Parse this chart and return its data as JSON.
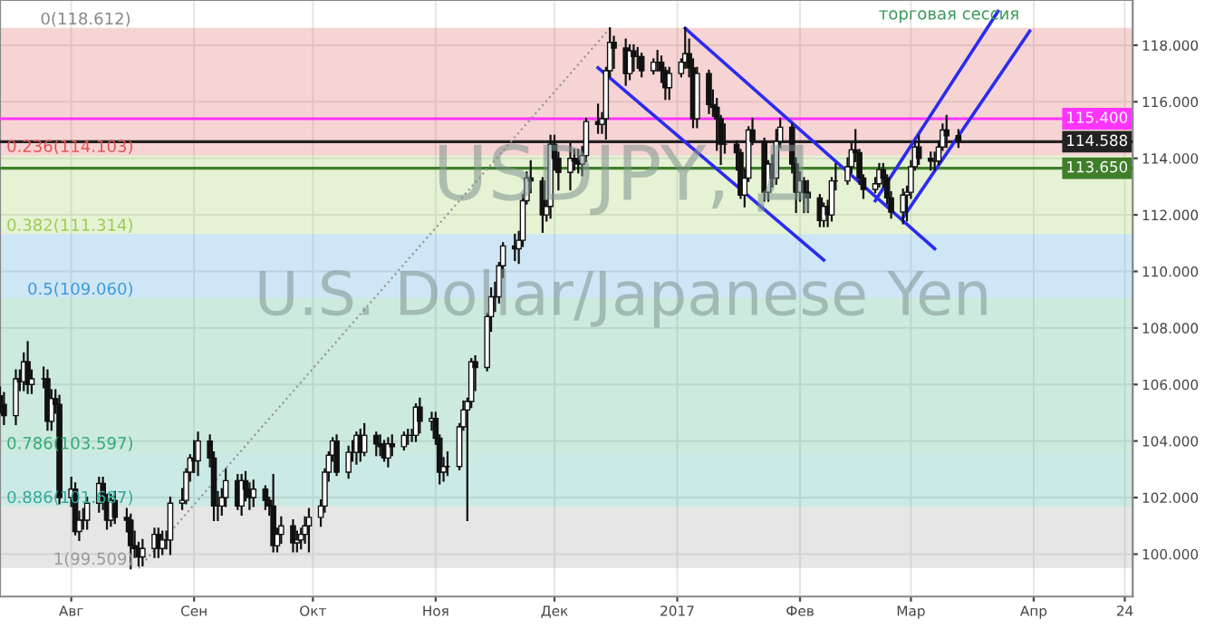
{
  "chart_data": {
    "type": "candlestick",
    "x": [
      "2016-07-14",
      "2016-07-15",
      "2016-07-18",
      "2016-07-19",
      "2016-07-20",
      "2016-07-21",
      "2016-07-22",
      "2016-07-25",
      "2016-07-26",
      "2016-07-27",
      "2016-07-28",
      "2016-07-29",
      "2016-08-01",
      "2016-08-02",
      "2016-08-03",
      "2016-08-04",
      "2016-08-05",
      "2016-08-08",
      "2016-08-09",
      "2016-08-10",
      "2016-08-11",
      "2016-08-12",
      "2016-08-15",
      "2016-08-16",
      "2016-08-17",
      "2016-08-18",
      "2016-08-19",
      "2016-08-22",
      "2016-08-23",
      "2016-08-24",
      "2016-08-25",
      "2016-08-26",
      "2016-08-29",
      "2016-08-30",
      "2016-08-31",
      "2016-09-01",
      "2016-09-02",
      "2016-09-05",
      "2016-09-06",
      "2016-09-07",
      "2016-09-08",
      "2016-09-09",
      "2016-09-12",
      "2016-09-13",
      "2016-09-14",
      "2016-09-15",
      "2016-09-16",
      "2016-09-19",
      "2016-09-20",
      "2016-09-21",
      "2016-09-22",
      "2016-09-23",
      "2016-09-26",
      "2016-09-27",
      "2016-09-28",
      "2016-09-29",
      "2016-09-30",
      "2016-10-03",
      "2016-10-04",
      "2016-10-05",
      "2016-10-06",
      "2016-10-07",
      "2016-10-10",
      "2016-10-11",
      "2016-10-12",
      "2016-10-13",
      "2016-10-14",
      "2016-10-17",
      "2016-10-18",
      "2016-10-19",
      "2016-10-20",
      "2016-10-21",
      "2016-10-24",
      "2016-10-25",
      "2016-10-26",
      "2016-10-27",
      "2016-10-28",
      "2016-10-31",
      "2016-11-01",
      "2016-11-02",
      "2016-11-03",
      "2016-11-04",
      "2016-11-07",
      "2016-11-08",
      "2016-11-09",
      "2016-11-10",
      "2016-11-11",
      "2016-11-14",
      "2016-11-15",
      "2016-11-16",
      "2016-11-17",
      "2016-11-18",
      "2016-11-21",
      "2016-11-22",
      "2016-11-23",
      "2016-11-24",
      "2016-11-25",
      "2016-11-28",
      "2016-11-29",
      "2016-11-30",
      "2016-12-01",
      "2016-12-02",
      "2016-12-05",
      "2016-12-06",
      "2016-12-07",
      "2016-12-08",
      "2016-12-09",
      "2016-12-12",
      "2016-12-13",
      "2016-12-14",
      "2016-12-15",
      "2016-12-16",
      "2016-12-19",
      "2016-12-20",
      "2016-12-21",
      "2016-12-22",
      "2016-12-23",
      "2016-12-26",
      "2016-12-27",
      "2016-12-28",
      "2016-12-29",
      "2016-12-30",
      "2017-01-02",
      "2017-01-03",
      "2017-01-04",
      "2017-01-05",
      "2017-01-06",
      "2017-01-09",
      "2017-01-10",
      "2017-01-11",
      "2017-01-12",
      "2017-01-13",
      "2017-01-16",
      "2017-01-17",
      "2017-01-18",
      "2017-01-19",
      "2017-01-20",
      "2017-01-23",
      "2017-01-24",
      "2017-01-25",
      "2017-01-26",
      "2017-01-27",
      "2017-01-30",
      "2017-01-31",
      "2017-02-01",
      "2017-02-02",
      "2017-02-03",
      "2017-02-06",
      "2017-02-07",
      "2017-02-08",
      "2017-02-09",
      "2017-02-10",
      "2017-02-13",
      "2017-02-14",
      "2017-02-15",
      "2017-02-16",
      "2017-02-17",
      "2017-02-20",
      "2017-02-21",
      "2017-02-22",
      "2017-02-23",
      "2017-02-24",
      "2017-02-27",
      "2017-02-28",
      "2017-03-01",
      "2017-03-02",
      "2017-03-03",
      "2017-03-06",
      "2017-03-07",
      "2017-03-08",
      "2017-03-09",
      "2017-03-10",
      "2017-03-13"
    ],
    "ohlc": [
      [
        105.6,
        105.9,
        105.0,
        105.3
      ],
      [
        105.3,
        105.7,
        104.6,
        104.9
      ],
      [
        104.9,
        106.5,
        104.6,
        106.2
      ],
      [
        106.2,
        106.5,
        105.8,
        106.1
      ],
      [
        106.1,
        107.1,
        105.8,
        106.8
      ],
      [
        106.8,
        107.5,
        105.7,
        106.0
      ],
      [
        106.0,
        106.5,
        105.7,
        106.2
      ],
      [
        106.2,
        106.6,
        105.9,
        106.2
      ],
      [
        106.2,
        106.5,
        104.4,
        104.7
      ],
      [
        104.7,
        105.8,
        104.4,
        105.5
      ],
      [
        105.5,
        105.8,
        105.0,
        105.3
      ],
      [
        105.3,
        105.6,
        101.8,
        102.0
      ],
      [
        102.0,
        102.7,
        101.7,
        102.3
      ],
      [
        102.3,
        102.5,
        100.7,
        100.8
      ],
      [
        100.8,
        101.5,
        100.5,
        101.2
      ],
      [
        101.2,
        101.6,
        100.9,
        101.2
      ],
      [
        101.2,
        102.0,
        100.9,
        101.8
      ],
      [
        101.8,
        102.7,
        101.5,
        102.5
      ],
      [
        102.5,
        102.7,
        101.6,
        101.9
      ],
      [
        101.9,
        102.1,
        100.9,
        101.2
      ],
      [
        101.2,
        102.1,
        101.0,
        101.9
      ],
      [
        101.9,
        102.2,
        101.1,
        101.3
      ],
      [
        101.3,
        101.6,
        100.8,
        101.2
      ],
      [
        101.2,
        101.4,
        99.5,
        100.3
      ],
      [
        100.3,
        100.8,
        99.9,
        100.2
      ],
      [
        100.2,
        100.4,
        99.6,
        99.9
      ],
      [
        99.9,
        100.5,
        99.6,
        100.2
      ],
      [
        100.2,
        100.9,
        99.9,
        100.7
      ],
      [
        100.7,
        100.9,
        99.9,
        100.2
      ],
      [
        100.2,
        100.8,
        100.0,
        100.5
      ],
      [
        100.5,
        100.8,
        100.2,
        100.5
      ],
      [
        100.5,
        102.0,
        100.0,
        101.8
      ],
      [
        101.8,
        102.3,
        101.6,
        101.9
      ],
      [
        101.9,
        103.0,
        101.8,
        102.9
      ],
      [
        102.9,
        103.5,
        102.6,
        103.4
      ],
      [
        103.4,
        104.0,
        102.9,
        103.3
      ],
      [
        103.3,
        104.3,
        102.8,
        104.0
      ],
      [
        104.0,
        104.2,
        103.1,
        103.4
      ],
      [
        103.4,
        103.6,
        101.2,
        101.7
      ],
      [
        101.7,
        102.2,
        101.2,
        101.7
      ],
      [
        101.7,
        102.3,
        101.4,
        102.0
      ],
      [
        102.0,
        103.0,
        101.7,
        102.6
      ],
      [
        102.6,
        102.8,
        101.6,
        101.7
      ],
      [
        101.7,
        102.8,
        101.4,
        102.6
      ],
      [
        102.6,
        102.9,
        101.9,
        102.3
      ],
      [
        102.3,
        102.5,
        101.6,
        102.0
      ],
      [
        102.0,
        102.6,
        101.7,
        102.3
      ],
      [
        102.3,
        102.4,
        101.6,
        101.9
      ],
      [
        101.9,
        102.0,
        101.4,
        101.7
      ],
      [
        101.7,
        102.8,
        100.1,
        100.3
      ],
      [
        100.3,
        100.9,
        100.1,
        100.7
      ],
      [
        100.7,
        101.3,
        100.4,
        101.0
      ],
      [
        101.0,
        101.2,
        100.1,
        100.4
      ],
      [
        100.4,
        100.8,
        100.1,
        100.5
      ],
      [
        100.5,
        100.9,
        100.2,
        100.7
      ],
      [
        100.7,
        101.3,
        100.4,
        101.0
      ],
      [
        101.0,
        101.6,
        100.1,
        101.3
      ],
      [
        101.3,
        101.9,
        101.0,
        101.7
      ],
      [
        101.7,
        103.0,
        101.5,
        102.9
      ],
      [
        102.9,
        103.6,
        102.6,
        103.5
      ],
      [
        103.5,
        104.1,
        103.3,
        104.0
      ],
      [
        104.0,
        104.2,
        102.8,
        102.9
      ],
      [
        102.9,
        103.8,
        102.7,
        103.6
      ],
      [
        103.6,
        104.0,
        103.3,
        103.6
      ],
      [
        103.6,
        104.3,
        103.2,
        104.2
      ],
      [
        104.2,
        104.4,
        103.3,
        103.6
      ],
      [
        103.6,
        104.6,
        103.5,
        104.2
      ],
      [
        104.2,
        104.3,
        103.5,
        103.9
      ],
      [
        103.9,
        104.2,
        103.5,
        103.8
      ],
      [
        103.8,
        104.0,
        103.3,
        103.4
      ],
      [
        103.4,
        104.1,
        103.1,
        103.9
      ],
      [
        103.9,
        104.2,
        103.5,
        103.8
      ],
      [
        103.8,
        104.3,
        103.7,
        104.2
      ],
      [
        104.2,
        104.4,
        103.9,
        104.2
      ],
      [
        104.2,
        104.4,
        104.0,
        104.2
      ],
      [
        104.2,
        105.3,
        104.0,
        105.2
      ],
      [
        105.2,
        105.5,
        104.3,
        104.7
      ],
      [
        104.7,
        105.0,
        104.4,
        104.8
      ],
      [
        104.8,
        105.0,
        103.9,
        104.1
      ],
      [
        104.1,
        104.2,
        102.5,
        102.9
      ],
      [
        102.9,
        103.4,
        102.6,
        103.1
      ],
      [
        103.1,
        103.6,
        102.8,
        103.1
      ],
      [
        103.1,
        104.6,
        103.0,
        104.5
      ],
      [
        104.5,
        105.4,
        104.4,
        105.1
      ],
      [
        105.1,
        105.5,
        101.2,
        105.4
      ],
      [
        105.4,
        106.9,
        105.2,
        106.8
      ],
      [
        106.8,
        107.0,
        105.8,
        106.6
      ],
      [
        106.6,
        108.5,
        106.5,
        108.4
      ],
      [
        108.4,
        109.4,
        107.9,
        109.1
      ],
      [
        109.1,
        109.6,
        108.6,
        109.1
      ],
      [
        109.1,
        110.3,
        108.9,
        110.2
      ],
      [
        110.2,
        111.0,
        109.8,
        110.9
      ],
      [
        110.9,
        111.3,
        110.4,
        110.8
      ],
      [
        110.8,
        111.4,
        110.3,
        111.1
      ],
      [
        111.1,
        112.7,
        110.9,
        112.5
      ],
      [
        112.5,
        113.5,
        112.4,
        113.3
      ],
      [
        113.3,
        113.9,
        112.8,
        113.2
      ],
      [
        113.2,
        113.3,
        111.4,
        112.0
      ],
      [
        112.0,
        112.5,
        111.8,
        112.3
      ],
      [
        112.3,
        114.8,
        111.9,
        114.5
      ],
      [
        114.5,
        114.8,
        113.6,
        114.0
      ],
      [
        114.0,
        114.2,
        112.9,
        113.5
      ],
      [
        113.5,
        114.5,
        112.9,
        114.0
      ],
      [
        114.0,
        114.3,
        113.6,
        113.9
      ],
      [
        113.9,
        114.3,
        113.5,
        113.8
      ],
      [
        113.8,
        114.4,
        113.4,
        114.1
      ],
      [
        114.1,
        115.4,
        113.9,
        115.3
      ],
      [
        115.3,
        115.9,
        114.9,
        115.2
      ],
      [
        115.2,
        115.6,
        114.9,
        115.4
      ],
      [
        115.4,
        117.2,
        114.7,
        117.1
      ],
      [
        117.1,
        118.6,
        116.9,
        118.1
      ],
      [
        118.1,
        118.3,
        117.2,
        117.9
      ],
      [
        117.9,
        118.2,
        116.6,
        117.0
      ],
      [
        117.0,
        118.0,
        116.8,
        117.8
      ],
      [
        117.8,
        118.0,
        117.1,
        117.6
      ],
      [
        117.6,
        117.9,
        117.2,
        117.6
      ],
      [
        117.6,
        117.7,
        116.9,
        117.1
      ],
      [
        117.1,
        117.5,
        117.0,
        117.4
      ],
      [
        117.4,
        117.8,
        117.1,
        117.4
      ],
      [
        117.4,
        117.6,
        116.7,
        117.1
      ],
      [
        117.1,
        117.2,
        116.1,
        116.5
      ],
      [
        116.5,
        117.2,
        116.1,
        117.0
      ],
      [
        117.0,
        117.5,
        116.9,
        117.4
      ],
      [
        117.4,
        118.6,
        117.2,
        117.7
      ],
      [
        117.7,
        118.2,
        116.9,
        117.2
      ],
      [
        117.2,
        117.5,
        115.1,
        115.4
      ],
      [
        115.4,
        117.2,
        115.1,
        117.0
      ],
      [
        117.0,
        117.1,
        115.6,
        115.9
      ],
      [
        115.9,
        116.4,
        115.5,
        115.8
      ],
      [
        115.8,
        116.1,
        114.3,
        115.4
      ],
      [
        115.4,
        115.5,
        113.8,
        114.5
      ],
      [
        114.5,
        115.2,
        114.2,
        114.5
      ],
      [
        114.5,
        114.6,
        113.6,
        114.2
      ],
      [
        114.2,
        114.3,
        112.6,
        112.7
      ],
      [
        112.7,
        113.6,
        112.3,
        113.3
      ],
      [
        113.3,
        115.1,
        113.2,
        115.0
      ],
      [
        115.0,
        115.4,
        114.5,
        114.6
      ],
      [
        114.6,
        114.7,
        112.5,
        112.8
      ],
      [
        112.8,
        113.9,
        112.5,
        113.8
      ],
      [
        113.8,
        114.1,
        113.0,
        113.3
      ],
      [
        113.3,
        115.0,
        113.1,
        114.6
      ],
      [
        114.6,
        115.4,
        114.4,
        115.1
      ],
      [
        115.1,
        115.2,
        113.5,
        113.8
      ],
      [
        113.8,
        114.0,
        112.1,
        112.8
      ],
      [
        112.8,
        113.5,
        112.5,
        113.2
      ],
      [
        113.2,
        113.3,
        112.1,
        112.8
      ],
      [
        112.8,
        113.2,
        112.1,
        112.6
      ],
      [
        112.6,
        112.7,
        111.6,
        111.8
      ],
      [
        111.8,
        112.4,
        111.6,
        112.3
      ],
      [
        112.3,
        112.5,
        111.6,
        112.0
      ],
      [
        112.0,
        113.3,
        111.8,
        113.2
      ],
      [
        113.2,
        113.8,
        112.9,
        113.2
      ],
      [
        113.2,
        114.0,
        113.1,
        113.7
      ],
      [
        113.7,
        114.5,
        113.5,
        114.3
      ],
      [
        114.3,
        115.0,
        113.9,
        114.2
      ],
      [
        114.2,
        114.3,
        113.1,
        113.3
      ],
      [
        113.3,
        113.4,
        112.6,
        112.9
      ],
      [
        112.9,
        113.3,
        112.8,
        113.1
      ],
      [
        113.1,
        113.8,
        113.0,
        113.6
      ],
      [
        113.6,
        113.8,
        113.0,
        113.3
      ],
      [
        113.3,
        113.4,
        112.4,
        112.6
      ],
      [
        112.6,
        112.8,
        111.9,
        112.1
      ],
      [
        112.1,
        112.9,
        111.7,
        112.7
      ],
      [
        112.7,
        113.0,
        111.8,
        112.8
      ],
      [
        112.8,
        113.9,
        112.6,
        113.7
      ],
      [
        113.7,
        114.6,
        113.6,
        114.4
      ],
      [
        114.4,
        114.8,
        113.8,
        114.0
      ],
      [
        114.0,
        114.2,
        113.6,
        113.9
      ],
      [
        113.9,
        114.2,
        113.6,
        113.9
      ],
      [
        113.9,
        114.6,
        113.8,
        114.4
      ],
      [
        114.4,
        115.2,
        114.3,
        115.0
      ],
      [
        115.0,
        115.5,
        114.4,
        114.8
      ],
      [
        114.8,
        115.0,
        114.4,
        114.588
      ]
    ],
    "color": "#111111",
    "series": [
      {
        "type": "line",
        "color": "#2b2bf0",
        "x": [
          "2016-12-12",
          "2017-02-07"
        ],
        "values": [
          117.2,
          110.4
        ]
      },
      {
        "type": "line",
        "color": "#2b2bf0",
        "x": [
          "2017-01-03",
          "2017-03-07"
        ],
        "values": [
          118.6,
          110.8
        ]
      },
      {
        "type": "line",
        "color": "#2b2bf0",
        "x": [
          "2017-02-20",
          "2017-03-23"
        ],
        "values": [
          112.5,
          119.2
        ]
      },
      {
        "type": "line",
        "color": "#2b2bf0",
        "x": [
          "2017-02-27",
          "2017-03-31"
        ],
        "values": [
          111.9,
          118.5
        ]
      },
      {
        "type": "line",
        "color": "#999999",
        "line_style": "dotted",
        "x": [
          "2016-08-18",
          "2016-12-15"
        ],
        "values": [
          99.5,
          118.6
        ]
      }
    ],
    "bands": [
      {
        "axis": "y",
        "from": 118.612,
        "to": 114.103,
        "label": "0.236(114.103)",
        "color": "#e05555"
      },
      {
        "axis": "y",
        "from": 114.103,
        "to": 111.314,
        "label": "0.382(111.314)",
        "color": "#9ccc55"
      },
      {
        "axis": "y",
        "from": 111.314,
        "to": 109.06,
        "label": "0.5(109.060)",
        "color": "#3d9ad8"
      },
      {
        "axis": "y",
        "from": 109.06,
        "to": 103.597,
        "label": "0.786(103.597)",
        "color": "#33aa77"
      },
      {
        "axis": "y",
        "from": 103.597,
        "to": 101.687,
        "label": "0.886(101.687)",
        "color": "#33aa99"
      },
      {
        "axis": "y",
        "from": 101.687,
        "to": 99.509,
        "label": "1(99.509)",
        "color": "#9a9a9a"
      }
    ],
    "ref_lines": [
      {
        "axis": "y",
        "value": 115.4,
        "label": "115.400",
        "color": "#ff33ff"
      },
      {
        "axis": "y",
        "value": 114.588,
        "label": "114.588",
        "color": "#222222"
      },
      {
        "axis": "y",
        "value": 113.65,
        "label": "113.650",
        "color": "#3f7f2a"
      }
    ],
    "annotations": [
      "торговая сессия",
      "USDJPY, Д",
      "U.S. Dollar/Japanese Yen",
      {
        "text": "0(118.612)",
        "x": "2016-08-18",
        "y": 118.612
      }
    ],
    "xlim": [
      "2016-07-14",
      "2017-04-26"
    ],
    "xticks": [
      {
        "value": "2016-08-01",
        "label": "Авг"
      },
      {
        "value": "2016-09-01",
        "label": "Сен"
      },
      {
        "value": "2016-10-01",
        "label": "Окт"
      },
      {
        "value": "2016-11-01",
        "label": "Ноя"
      },
      {
        "value": "2016-12-01",
        "label": "Дек"
      },
      {
        "value": "2017-01-01",
        "label": "2017"
      },
      {
        "value": "2017-02-01",
        "label": "Фев"
      },
      {
        "value": "2017-03-01",
        "label": "Мар"
      },
      {
        "value": "2017-04-01",
        "label": "Апр"
      },
      {
        "value": "2017-04-24",
        "label": "24"
      }
    ],
    "ylim": [
      98.5,
      119.6
    ],
    "yticks": [
      {
        "value": 100,
        "label": "100.000"
      },
      {
        "value": 102,
        "label": "102.000"
      },
      {
        "value": 104,
        "label": "104.000"
      },
      {
        "value": 106,
        "label": "106.000"
      },
      {
        "value": 108,
        "label": "108.000"
      },
      {
        "value": 110,
        "label": "110.000"
      },
      {
        "value": 112,
        "label": "112.000"
      },
      {
        "value": 114,
        "label": "114.000"
      },
      {
        "value": 116,
        "label": "116.000"
      },
      {
        "value": 118,
        "label": "118.000"
      }
    ],
    "grid": true
  }
}
